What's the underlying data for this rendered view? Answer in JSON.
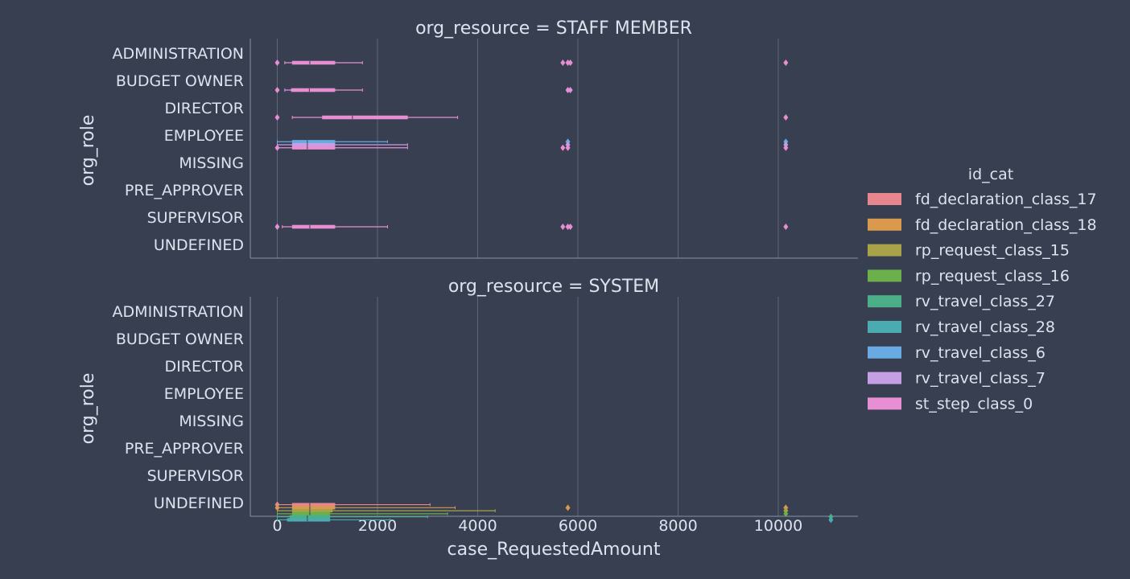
{
  "chart_data": {
    "type": "boxplot",
    "xlabel": "case_RequestedAmount",
    "ylabel": "org_role",
    "xlim": [
      -550,
      11700
    ],
    "x_ticks": [
      0,
      2000,
      4000,
      6000,
      8000,
      10000
    ],
    "grid": "vertical",
    "legend": {
      "title": "id_cat",
      "placement": "right",
      "entries": [
        {
          "name": "fd_declaration_class_17",
          "color": "#e8868f"
        },
        {
          "name": "fd_declaration_class_18",
          "color": "#d99a4e"
        },
        {
          "name": "rp_request_class_15",
          "color": "#a8a349"
        },
        {
          "name": "rp_request_class_16",
          "color": "#6bb04a"
        },
        {
          "name": "rv_travel_class_27",
          "color": "#4bb08a"
        },
        {
          "name": "rv_travel_class_28",
          "color": "#4aabb0"
        },
        {
          "name": "rv_travel_class_6",
          "color": "#6aaae3"
        },
        {
          "name": "rv_travel_class_7",
          "color": "#c59ee3"
        },
        {
          "name": "st_step_class_0",
          "color": "#e88fd3"
        }
      ]
    },
    "categories": [
      "ADMINISTRATION",
      "BUDGET OWNER",
      "DIRECTOR",
      "EMPLOYEE",
      "MISSING",
      "PRE_APPROVER",
      "SUPERVISOR",
      "UNDEFINED"
    ],
    "panels": [
      {
        "title": "org_resource = STAFF MEMBER",
        "boxes": [
          {
            "category": "ADMINISTRATION",
            "series": "st_step_class_0",
            "whislo": 150,
            "q1": 300,
            "med": 650,
            "q3": 1150,
            "whishi": 1700,
            "fliers": [
              0,
              5700,
              5800,
              5850,
              10150
            ]
          },
          {
            "category": "BUDGET OWNER",
            "series": "st_step_class_0",
            "whislo": 150,
            "q1": 280,
            "med": 640,
            "q3": 1150,
            "whishi": 1700,
            "fliers": [
              0,
              5800,
              5850
            ]
          },
          {
            "category": "DIRECTOR",
            "series": "st_step_class_0",
            "whislo": 300,
            "q1": 900,
            "med": 1500,
            "q3": 2600,
            "whishi": 3600,
            "fliers": [
              0,
              10150
            ]
          },
          {
            "category": "EMPLOYEE",
            "series": "rv_travel_class_6",
            "whislo": 0,
            "q1": 300,
            "med": 600,
            "q3": 1150,
            "whishi": 2200,
            "fliers": [
              5800,
              10150
            ]
          },
          {
            "category": "EMPLOYEE",
            "series": "rv_travel_class_7",
            "whislo": 0,
            "q1": 300,
            "med": 600,
            "q3": 1150,
            "whishi": 2600,
            "fliers": [
              5800,
              10150
            ]
          },
          {
            "category": "EMPLOYEE",
            "series": "st_step_class_0",
            "whislo": 0,
            "q1": 300,
            "med": 600,
            "q3": 1150,
            "whishi": 2600,
            "fliers": [
              0,
              5700,
              5800,
              10150
            ]
          },
          {
            "category": "SUPERVISOR",
            "series": "st_step_class_0",
            "whislo": 100,
            "q1": 300,
            "med": 650,
            "q3": 1150,
            "whishi": 2200,
            "fliers": [
              0,
              5700,
              5800,
              5850,
              10150
            ]
          }
        ]
      },
      {
        "title": "org_resource = SYSTEM",
        "boxes": [
          {
            "category": "UNDEFINED",
            "series": "fd_declaration_class_17",
            "whislo": 0,
            "q1": 300,
            "med": 650,
            "q3": 1150,
            "whishi": 3050,
            "fliers": [
              0
            ]
          },
          {
            "category": "UNDEFINED",
            "series": "fd_declaration_class_18",
            "whislo": 0,
            "q1": 300,
            "med": 650,
            "q3": 1150,
            "whishi": 3550,
            "fliers": [
              0,
              5800,
              10150
            ]
          },
          {
            "category": "UNDEFINED",
            "series": "rp_request_class_15",
            "whislo": 0,
            "q1": 300,
            "med": 650,
            "q3": 1100,
            "whishi": 4350,
            "fliers": [
              10150
            ]
          },
          {
            "category": "UNDEFINED",
            "series": "rp_request_class_16",
            "whislo": 0,
            "q1": 300,
            "med": 650,
            "q3": 1050,
            "whishi": 3400,
            "fliers": [
              10150
            ]
          },
          {
            "category": "UNDEFINED",
            "series": "rv_travel_class_27",
            "whislo": 0,
            "q1": 250,
            "med": 600,
            "q3": 1050,
            "whishi": 3000,
            "fliers": [
              11050
            ]
          },
          {
            "category": "UNDEFINED",
            "series": "rv_travel_class_28",
            "whislo": 0,
            "q1": 200,
            "med": 600,
            "q3": 1050,
            "whishi": 2250,
            "fliers": [
              11050
            ]
          }
        ]
      }
    ]
  }
}
